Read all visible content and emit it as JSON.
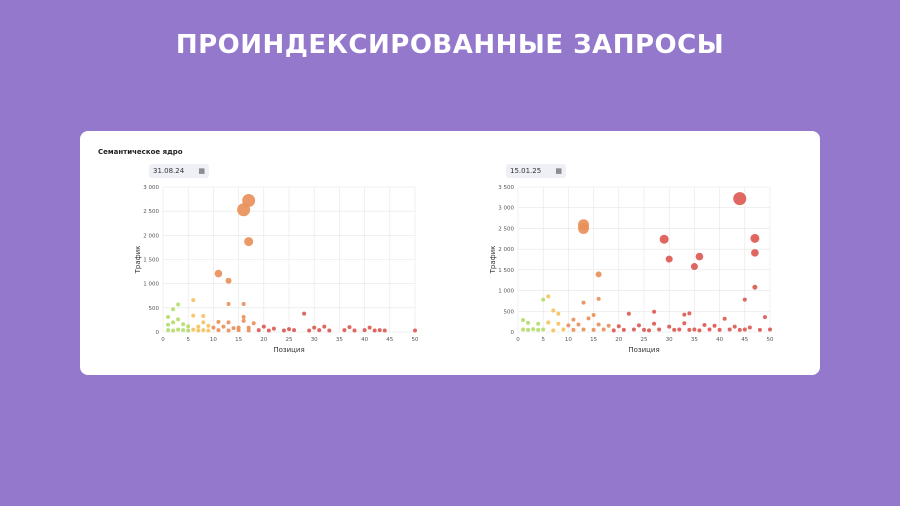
{
  "title": "ПРОИНДЕКСИРОВАННЫЕ ЗАПРОСЫ",
  "card": {
    "label": "Семантическое ядро",
    "calendar_icon": "calendar-icon"
  },
  "chart_data": [
    {
      "type": "scatter",
      "date": "31.08.24",
      "xlabel": "Позиция",
      "ylabel": "Трафик",
      "xlim": [
        0,
        50
      ],
      "ylim": [
        0,
        3000
      ],
      "xticks": [
        "0",
        "5",
        "10",
        "15",
        "20",
        "25",
        "30",
        "35",
        "40",
        "45",
        "50"
      ],
      "yticks": [
        "0",
        "500",
        "1 000",
        "1 500",
        "2 000",
        "2 500",
        "3 000"
      ],
      "grid": true,
      "points": [
        {
          "x": 17,
          "y": 2720,
          "r": 6.5
        },
        {
          "x": 16,
          "y": 2530,
          "r": 6.5
        },
        {
          "x": 17,
          "y": 1870,
          "r": 4.5
        },
        {
          "x": 11,
          "y": 1210,
          "r": 3.8
        },
        {
          "x": 13,
          "y": 1060,
          "r": 3
        },
        {
          "x": 6,
          "y": 660,
          "r": 2
        },
        {
          "x": 3,
          "y": 570,
          "r": 2
        },
        {
          "x": 2,
          "y": 470,
          "r": 2
        },
        {
          "x": 13,
          "y": 580,
          "r": 2
        },
        {
          "x": 16,
          "y": 580,
          "r": 2
        },
        {
          "x": 28,
          "y": 380,
          "r": 2
        },
        {
          "x": 1,
          "y": 310,
          "r": 2
        },
        {
          "x": 3,
          "y": 260,
          "r": 2
        },
        {
          "x": 6,
          "y": 340,
          "r": 2
        },
        {
          "x": 8,
          "y": 330,
          "r": 2
        },
        {
          "x": 8,
          "y": 200,
          "r": 2
        },
        {
          "x": 11,
          "y": 210,
          "r": 2
        },
        {
          "x": 13,
          "y": 200,
          "r": 2
        },
        {
          "x": 16,
          "y": 310,
          "r": 2
        },
        {
          "x": 16,
          "y": 230,
          "r": 2
        },
        {
          "x": 18,
          "y": 180,
          "r": 2
        },
        {
          "x": 1,
          "y": 150,
          "r": 2
        },
        {
          "x": 2,
          "y": 200,
          "r": 2
        },
        {
          "x": 4,
          "y": 160,
          "r": 2
        },
        {
          "x": 5,
          "y": 120,
          "r": 2
        },
        {
          "x": 7,
          "y": 110,
          "r": 2
        },
        {
          "x": 9,
          "y": 130,
          "r": 2
        },
        {
          "x": 10,
          "y": 90,
          "r": 2
        },
        {
          "x": 12,
          "y": 110,
          "r": 2
        },
        {
          "x": 14,
          "y": 80,
          "r": 2
        },
        {
          "x": 15,
          "y": 90,
          "r": 2
        },
        {
          "x": 17,
          "y": 90,
          "r": 2
        },
        {
          "x": 20,
          "y": 110,
          "r": 2
        },
        {
          "x": 22,
          "y": 70,
          "r": 2
        },
        {
          "x": 25,
          "y": 60,
          "r": 2
        },
        {
          "x": 30,
          "y": 90,
          "r": 2
        },
        {
          "x": 32,
          "y": 110,
          "r": 2
        },
        {
          "x": 37,
          "y": 100,
          "r": 2
        },
        {
          "x": 41,
          "y": 90,
          "r": 2
        },
        {
          "x": 1,
          "y": 40,
          "r": 2
        },
        {
          "x": 2,
          "y": 30,
          "r": 2
        },
        {
          "x": 3,
          "y": 50,
          "r": 2
        },
        {
          "x": 4,
          "y": 40,
          "r": 2
        },
        {
          "x": 5,
          "y": 30,
          "r": 2
        },
        {
          "x": 6,
          "y": 50,
          "r": 2
        },
        {
          "x": 7,
          "y": 30,
          "r": 2
        },
        {
          "x": 8,
          "y": 40,
          "r": 2
        },
        {
          "x": 9,
          "y": 30,
          "r": 2
        },
        {
          "x": 11,
          "y": 40,
          "r": 2
        },
        {
          "x": 13,
          "y": 30,
          "r": 2
        },
        {
          "x": 15,
          "y": 40,
          "r": 2
        },
        {
          "x": 17,
          "y": 30,
          "r": 2
        },
        {
          "x": 19,
          "y": 40,
          "r": 2
        },
        {
          "x": 21,
          "y": 30,
          "r": 2
        },
        {
          "x": 24,
          "y": 30,
          "r": 2
        },
        {
          "x": 26,
          "y": 40,
          "r": 2
        },
        {
          "x": 29,
          "y": 30,
          "r": 2
        },
        {
          "x": 31,
          "y": 40,
          "r": 2
        },
        {
          "x": 33,
          "y": 30,
          "r": 2
        },
        {
          "x": 36,
          "y": 40,
          "r": 2
        },
        {
          "x": 38,
          "y": 30,
          "r": 2
        },
        {
          "x": 40,
          "y": 40,
          "r": 2
        },
        {
          "x": 42,
          "y": 30,
          "r": 2
        },
        {
          "x": 43,
          "y": 40,
          "r": 2
        },
        {
          "x": 44,
          "y": 30,
          "r": 2
        },
        {
          "x": 50,
          "y": 30,
          "r": 2
        }
      ]
    },
    {
      "type": "scatter",
      "date": "15.01.25",
      "xlabel": "Позиция",
      "ylabel": "Трафик",
      "xlim": [
        0,
        50
      ],
      "ylim": [
        0,
        3500
      ],
      "xticks": [
        "0",
        "5",
        "10",
        "15",
        "20",
        "25",
        "30",
        "35",
        "40",
        "45",
        "50"
      ],
      "yticks": [
        "0",
        "500",
        "1 000",
        "1 500",
        "2 000",
        "2 500",
        "3 000",
        "3 500"
      ],
      "grid": true,
      "points": [
        {
          "x": 44,
          "y": 3220,
          "r": 6.5
        },
        {
          "x": 13,
          "y": 2590,
          "r": 5.5
        },
        {
          "x": 13,
          "y": 2500,
          "r": 5.5
        },
        {
          "x": 29,
          "y": 2240,
          "r": 4.5
        },
        {
          "x": 47,
          "y": 2260,
          "r": 4.5
        },
        {
          "x": 47,
          "y": 1910,
          "r": 3.8
        },
        {
          "x": 36,
          "y": 1820,
          "r": 3.8
        },
        {
          "x": 30,
          "y": 1760,
          "r": 3.5
        },
        {
          "x": 35,
          "y": 1580,
          "r": 3.5
        },
        {
          "x": 16,
          "y": 1390,
          "r": 3
        },
        {
          "x": 47,
          "y": 1080,
          "r": 2.5
        },
        {
          "x": 6,
          "y": 860,
          "r": 2
        },
        {
          "x": 5,
          "y": 780,
          "r": 2
        },
        {
          "x": 16,
          "y": 800,
          "r": 2
        },
        {
          "x": 45,
          "y": 780,
          "r": 2
        },
        {
          "x": 13,
          "y": 710,
          "r": 2
        },
        {
          "x": 7,
          "y": 520,
          "r": 2
        },
        {
          "x": 8,
          "y": 440,
          "r": 2
        },
        {
          "x": 27,
          "y": 490,
          "r": 2
        },
        {
          "x": 22,
          "y": 440,
          "r": 2
        },
        {
          "x": 33,
          "y": 420,
          "r": 2
        },
        {
          "x": 34,
          "y": 450,
          "r": 2
        },
        {
          "x": 41,
          "y": 320,
          "r": 2
        },
        {
          "x": 49,
          "y": 360,
          "r": 2
        },
        {
          "x": 15,
          "y": 410,
          "r": 2
        },
        {
          "x": 14,
          "y": 330,
          "r": 2
        },
        {
          "x": 11,
          "y": 300,
          "r": 2
        },
        {
          "x": 1,
          "y": 290,
          "r": 2
        },
        {
          "x": 2,
          "y": 220,
          "r": 2
        },
        {
          "x": 4,
          "y": 200,
          "r": 2
        },
        {
          "x": 6,
          "y": 230,
          "r": 2
        },
        {
          "x": 8,
          "y": 200,
          "r": 2
        },
        {
          "x": 10,
          "y": 160,
          "r": 2
        },
        {
          "x": 12,
          "y": 180,
          "r": 2
        },
        {
          "x": 16,
          "y": 180,
          "r": 2
        },
        {
          "x": 18,
          "y": 150,
          "r": 2
        },
        {
          "x": 20,
          "y": 140,
          "r": 2
        },
        {
          "x": 24,
          "y": 160,
          "r": 2
        },
        {
          "x": 27,
          "y": 200,
          "r": 2
        },
        {
          "x": 30,
          "y": 130,
          "r": 2
        },
        {
          "x": 33,
          "y": 210,
          "r": 2
        },
        {
          "x": 37,
          "y": 170,
          "r": 2
        },
        {
          "x": 39,
          "y": 150,
          "r": 2
        },
        {
          "x": 43,
          "y": 130,
          "r": 2
        },
        {
          "x": 46,
          "y": 110,
          "r": 2
        },
        {
          "x": 1,
          "y": 60,
          "r": 2
        },
        {
          "x": 2,
          "y": 50,
          "r": 2
        },
        {
          "x": 3,
          "y": 70,
          "r": 2
        },
        {
          "x": 4,
          "y": 50,
          "r": 2
        },
        {
          "x": 5,
          "y": 60,
          "r": 2
        },
        {
          "x": 7,
          "y": 40,
          "r": 2
        },
        {
          "x": 9,
          "y": 60,
          "r": 2
        },
        {
          "x": 11,
          "y": 50,
          "r": 2
        },
        {
          "x": 13,
          "y": 60,
          "r": 2
        },
        {
          "x": 15,
          "y": 50,
          "r": 2
        },
        {
          "x": 17,
          "y": 60,
          "r": 2
        },
        {
          "x": 19,
          "y": 40,
          "r": 2
        },
        {
          "x": 21,
          "y": 50,
          "r": 2
        },
        {
          "x": 23,
          "y": 60,
          "r": 2
        },
        {
          "x": 25,
          "y": 50,
          "r": 2
        },
        {
          "x": 26,
          "y": 40,
          "r": 2
        },
        {
          "x": 28,
          "y": 60,
          "r": 2
        },
        {
          "x": 31,
          "y": 50,
          "r": 2
        },
        {
          "x": 32,
          "y": 60,
          "r": 2
        },
        {
          "x": 34,
          "y": 50,
          "r": 2
        },
        {
          "x": 35,
          "y": 60,
          "r": 2
        },
        {
          "x": 36,
          "y": 40,
          "r": 2
        },
        {
          "x": 38,
          "y": 60,
          "r": 2
        },
        {
          "x": 40,
          "y": 50,
          "r": 2
        },
        {
          "x": 42,
          "y": 60,
          "r": 2
        },
        {
          "x": 44,
          "y": 50,
          "r": 2
        },
        {
          "x": 45,
          "y": 60,
          "r": 2
        },
        {
          "x": 48,
          "y": 50,
          "r": 2
        },
        {
          "x": 50,
          "y": 60,
          "r": 2
        }
      ]
    }
  ],
  "colors": {
    "background": "#9378cc",
    "card": "#ffffff",
    "low_position": "#b5dc6e",
    "mid_position": "#f5c261",
    "high_position": "#e8905a",
    "far_position": "#dc5a52"
  }
}
